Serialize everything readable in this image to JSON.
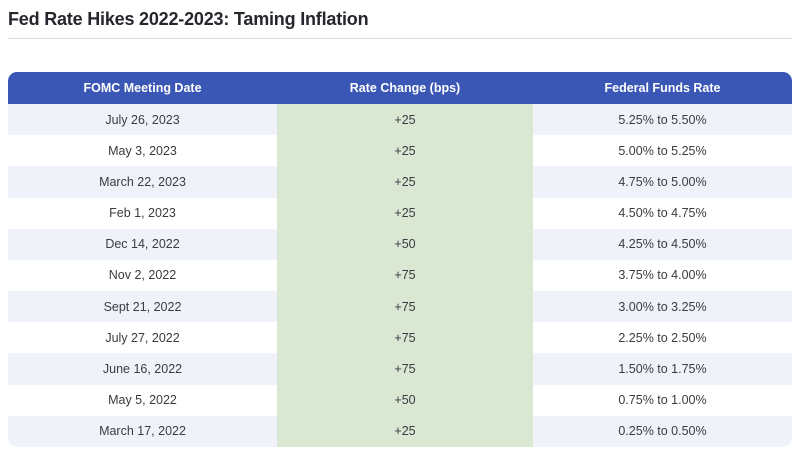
{
  "page": {
    "title": "Fed Rate Hikes 2022-2023: Taming Inflation"
  },
  "colors": {
    "header_bg": "#3A57B6",
    "header_text": "#FFFFFF",
    "highlight_green": "#D9E7D3",
    "row_alt_bg": "#F0F2F9",
    "row_bg": "#FFFFFF",
    "cell_text": "#3B3B40",
    "title_text": "#26262D",
    "divider": "#DDDDDD"
  },
  "chart_data": {
    "type": "table",
    "title": "Fed Rate Hikes 2022-2023: Taming Inflation",
    "columns": [
      "FOMC Meeting Date",
      "Rate Change (bps)",
      "Federal Funds Rate"
    ],
    "rows": [
      [
        "July 26, 2023",
        "+25",
        "5.25% to 5.50%"
      ],
      [
        "May 3, 2023",
        "+25",
        "5.00% to 5.25%"
      ],
      [
        "March 22, 2023",
        "+25",
        "4.75% to 5.00%"
      ],
      [
        "Feb 1, 2023",
        "+25",
        "4.50% to 4.75%"
      ],
      [
        "Dec 14, 2022",
        "+50",
        "4.25% to 4.50%"
      ],
      [
        "Nov 2, 2022",
        "+75",
        "3.75% to 4.00%"
      ],
      [
        "Sept 21, 2022",
        "+75",
        "3.00% to 3.25%"
      ],
      [
        "July 27, 2022",
        "+75",
        "2.25% to 2.50%"
      ],
      [
        "June 16, 2022",
        "+75",
        "1.50% to 1.75%"
      ],
      [
        "May 5, 2022",
        "+50",
        "0.75% to 1.00%"
      ],
      [
        "March 17, 2022",
        "+25",
        "0.25% to 0.50%"
      ]
    ],
    "layout_hints": {
      "highlighted_column": "Rate Change (bps)",
      "row_striping": "alternating, first row shaded",
      "column_alignment": "center",
      "header_style": "solid blue bar, rounded top corners"
    }
  }
}
